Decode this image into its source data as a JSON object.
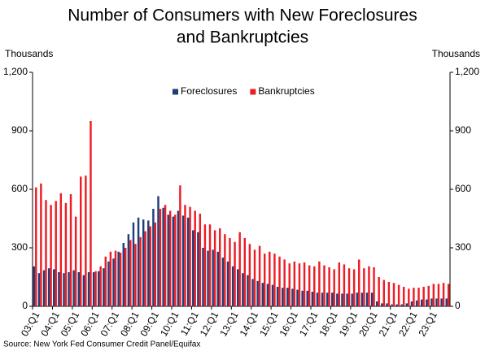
{
  "chart_data": {
    "type": "bar",
    "title": "Number of Consumers with New Foreclosures",
    "title_line2": "and Bankruptcies",
    "y_label": "Thousands",
    "y2_label": "Thousands",
    "source": "Source: New York Fed Consumer Credit Panel/Equifax",
    "legend": "top",
    "categories": [
      "03:Q1",
      null,
      null,
      null,
      "04:Q1",
      null,
      null,
      null,
      "05:Q1",
      null,
      null,
      null,
      "06:Q1",
      null,
      null,
      null,
      "07:Q1",
      null,
      null,
      null,
      "08:Q1",
      null,
      null,
      null,
      "09:Q1",
      null,
      null,
      null,
      "10:Q1",
      null,
      null,
      null,
      "11:Q1",
      null,
      null,
      null,
      "12:Q1",
      null,
      null,
      null,
      "13:Q1",
      null,
      null,
      null,
      "14:Q1",
      null,
      null,
      null,
      "15:Q1",
      null,
      null,
      null,
      "16:Q1",
      null,
      null,
      null,
      "17:Q1",
      null,
      null,
      null,
      "18:Q1",
      null,
      null,
      null,
      "19:Q1",
      null,
      null,
      null,
      "20:Q1",
      null,
      null,
      null,
      "21:Q1",
      null,
      null,
      null,
      "22:Q1",
      null,
      null,
      null,
      "23:Q1",
      null,
      null,
      null
    ],
    "series": [
      {
        "name": "Foreclosures",
        "color": "#1f3f7a",
        "values": [
          205,
          170,
          185,
          195,
          190,
          175,
          170,
          175,
          185,
          175,
          160,
          175,
          175,
          180,
          195,
          230,
          245,
          280,
          325,
          370,
          430,
          455,
          445,
          440,
          500,
          565,
          505,
          470,
          460,
          490,
          465,
          455,
          390,
          380,
          300,
          285,
          290,
          280,
          250,
          230,
          205,
          190,
          170,
          160,
          140,
          130,
          120,
          115,
          110,
          100,
          95,
          95,
          90,
          85,
          80,
          80,
          75,
          70,
          70,
          70,
          70,
          65,
          65,
          65,
          65,
          70,
          70,
          70,
          70,
          25,
          15,
          15,
          10,
          10,
          10,
          15,
          25,
          30,
          35,
          35,
          40,
          40,
          40,
          40
        ]
      },
      {
        "name": "Bankruptcies",
        "color": "#ee1c25",
        "values": [
          610,
          630,
          545,
          520,
          540,
          580,
          530,
          575,
          460,
          665,
          670,
          950,
          180,
          205,
          255,
          280,
          285,
          275,
          300,
          340,
          320,
          355,
          385,
          410,
          430,
          500,
          520,
          490,
          470,
          620,
          520,
          510,
          490,
          475,
          420,
          420,
          390,
          400,
          370,
          350,
          330,
          380,
          350,
          320,
          290,
          310,
          270,
          280,
          270,
          255,
          240,
          220,
          230,
          220,
          225,
          210,
          205,
          230,
          210,
          200,
          190,
          225,
          215,
          195,
          190,
          240,
          195,
          205,
          200,
          150,
          135,
          125,
          120,
          110,
          100,
          90,
          95,
          95,
          100,
          105,
          115,
          115,
          120,
          115
        ]
      }
    ],
    "ylim": [
      0,
      1200
    ],
    "yticks": [
      0,
      300,
      600,
      900,
      {
        "value": 1200,
        "label": "1,200"
      }
    ],
    "y2lim": [
      0,
      1200
    ],
    "y2ticks": [
      0,
      300,
      600,
      900,
      {
        "value": 1200,
        "label": "1,200"
      }
    ]
  }
}
